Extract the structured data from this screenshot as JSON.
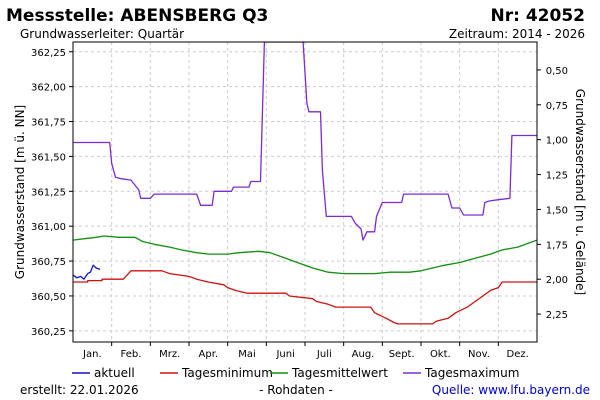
{
  "header": {
    "station_title": "Messstelle: ABENSBERG Q3",
    "station_number": "Nr: 42052",
    "aquifer": "Grundwasserleiter: Quartär",
    "period": "Zeitraum: 2014 - 2026"
  },
  "footer": {
    "created": "erstellt:  22.01.2026",
    "raw_note": "- Rohdaten -",
    "source": "Quelle: www.lfu.bayern.de"
  },
  "chart_data": {
    "type": "line",
    "title": "",
    "xlabel": "",
    "ylabel": "Grundwasserstand [m ü. NN]",
    "ylabel_right": "Grundwasserstand [m u. Gelände]",
    "months": [
      "Jan.",
      "Feb.",
      "Mrz.",
      "Apr.",
      "Mai",
      "Juni",
      "Juli",
      "Aug.",
      "Sept.",
      "Okt.",
      "Nov.",
      "Dez."
    ],
    "xlim": [
      0,
      12
    ],
    "ylim": [
      360.17,
      362.32
    ],
    "y_ticks": [
      "360,25",
      "360,50",
      "360,75",
      "361,00",
      "361,25",
      "361,50",
      "361,75",
      "362,00",
      "362,25"
    ],
    "y_tick_values": [
      360.25,
      360.5,
      360.75,
      361.0,
      361.25,
      361.5,
      361.75,
      362.0,
      362.25
    ],
    "y2_ticks": [
      "2,25",
      "2,00",
      "1,75",
      "1,50",
      "1,25",
      "1,00",
      "0,75",
      "0,50",
      "0,25"
    ],
    "y2_tick_values": [
      360.37,
      360.62,
      360.87,
      361.12,
      361.37,
      361.62,
      361.87,
      362.12,
      362.37
    ],
    "grid": true,
    "legend_position": "bottom",
    "series": [
      {
        "name": "aktuell",
        "color": "#1010c8",
        "points": [
          [
            0.0,
            360.65
          ],
          [
            0.1,
            360.63
          ],
          [
            0.2,
            360.64
          ],
          [
            0.28,
            360.62
          ],
          [
            0.38,
            360.66
          ],
          [
            0.45,
            360.67
          ],
          [
            0.52,
            360.72
          ],
          [
            0.6,
            360.7
          ],
          [
            0.7,
            360.69
          ]
        ]
      },
      {
        "name": "Tagesminimum",
        "color": "#d01010",
        "points": [
          [
            0.0,
            360.6
          ],
          [
            0.38,
            360.6
          ],
          [
            0.38,
            360.61
          ],
          [
            0.75,
            360.61
          ],
          [
            0.75,
            360.62
          ],
          [
            1.3,
            360.62
          ],
          [
            1.5,
            360.68
          ],
          [
            2.3,
            360.68
          ],
          [
            2.5,
            360.66
          ],
          [
            3.0,
            360.64
          ],
          [
            3.2,
            360.62
          ],
          [
            3.5,
            360.6
          ],
          [
            3.9,
            360.58
          ],
          [
            4.0,
            360.56
          ],
          [
            4.2,
            360.54
          ],
          [
            4.5,
            360.52
          ],
          [
            5.5,
            360.52
          ],
          [
            5.6,
            360.5
          ],
          [
            6.2,
            360.48
          ],
          [
            6.3,
            360.46
          ],
          [
            6.6,
            360.44
          ],
          [
            6.8,
            360.42
          ],
          [
            7.7,
            360.42
          ],
          [
            7.8,
            360.38
          ],
          [
            8.1,
            360.34
          ],
          [
            8.3,
            360.31
          ],
          [
            8.4,
            360.3
          ],
          [
            9.3,
            360.3
          ],
          [
            9.4,
            360.32
          ],
          [
            9.7,
            360.34
          ],
          [
            9.9,
            360.38
          ],
          [
            10.2,
            360.42
          ],
          [
            10.4,
            360.46
          ],
          [
            10.6,
            360.5
          ],
          [
            10.8,
            360.54
          ],
          [
            11.0,
            360.56
          ],
          [
            11.1,
            360.6
          ],
          [
            12.0,
            360.6
          ]
        ]
      },
      {
        "name": "Tagesmittelwert",
        "color": "#109010",
        "points": [
          [
            0.0,
            360.9
          ],
          [
            0.3,
            360.91
          ],
          [
            0.6,
            360.92
          ],
          [
            0.8,
            360.93
          ],
          [
            1.2,
            360.92
          ],
          [
            1.6,
            360.92
          ],
          [
            1.8,
            360.89
          ],
          [
            2.1,
            360.87
          ],
          [
            2.5,
            360.85
          ],
          [
            2.8,
            360.83
          ],
          [
            3.2,
            360.81
          ],
          [
            3.5,
            360.8
          ],
          [
            4.0,
            360.8
          ],
          [
            4.3,
            360.81
          ],
          [
            4.8,
            360.82
          ],
          [
            5.1,
            360.81
          ],
          [
            5.4,
            360.78
          ],
          [
            5.8,
            360.74
          ],
          [
            6.2,
            360.7
          ],
          [
            6.6,
            360.67
          ],
          [
            7.0,
            360.66
          ],
          [
            7.4,
            360.66
          ],
          [
            7.8,
            360.66
          ],
          [
            8.2,
            360.67
          ],
          [
            8.7,
            360.67
          ],
          [
            9.0,
            360.68
          ],
          [
            9.3,
            360.7
          ],
          [
            9.6,
            360.72
          ],
          [
            10.0,
            360.74
          ],
          [
            10.4,
            360.77
          ],
          [
            10.8,
            360.8
          ],
          [
            11.1,
            360.83
          ],
          [
            11.5,
            360.85
          ],
          [
            11.8,
            360.88
          ],
          [
            12.0,
            360.9
          ]
        ]
      },
      {
        "name": "Tagesmaximum",
        "color": "#7b2bd6",
        "points": [
          [
            0.0,
            361.6
          ],
          [
            0.95,
            361.6
          ],
          [
            1.0,
            361.45
          ],
          [
            1.1,
            361.35
          ],
          [
            1.25,
            361.34
          ],
          [
            1.5,
            361.33
          ],
          [
            1.7,
            361.26
          ],
          [
            1.75,
            361.2
          ],
          [
            2.0,
            361.2
          ],
          [
            2.1,
            361.23
          ],
          [
            3.2,
            361.23
          ],
          [
            3.3,
            361.15
          ],
          [
            3.6,
            361.15
          ],
          [
            3.65,
            361.25
          ],
          [
            4.1,
            361.25
          ],
          [
            4.15,
            361.28
          ],
          [
            4.55,
            361.28
          ],
          [
            4.6,
            361.32
          ],
          [
            4.85,
            361.32
          ],
          [
            4.95,
            362.32
          ],
          [
            5.95,
            362.32
          ],
          [
            6.05,
            361.88
          ],
          [
            6.1,
            361.82
          ],
          [
            6.4,
            361.82
          ],
          [
            6.45,
            361.4
          ],
          [
            6.55,
            361.07
          ],
          [
            7.2,
            361.07
          ],
          [
            7.3,
            361.02
          ],
          [
            7.45,
            360.98
          ],
          [
            7.5,
            360.9
          ],
          [
            7.6,
            360.96
          ],
          [
            7.8,
            360.96
          ],
          [
            7.85,
            361.07
          ],
          [
            8.0,
            361.17
          ],
          [
            8.5,
            361.17
          ],
          [
            8.55,
            361.23
          ],
          [
            9.7,
            361.23
          ],
          [
            9.8,
            361.13
          ],
          [
            10.0,
            361.13
          ],
          [
            10.1,
            361.08
          ],
          [
            10.6,
            361.08
          ],
          [
            10.65,
            361.17
          ],
          [
            10.75,
            361.18
          ],
          [
            11.0,
            361.19
          ],
          [
            11.3,
            361.2
          ],
          [
            11.35,
            361.65
          ],
          [
            12.0,
            361.65
          ],
          [
            12.03,
            361.55
          ],
          [
            12.06,
            361.62
          ],
          [
            12.1,
            361.62
          ]
        ]
      }
    ]
  }
}
